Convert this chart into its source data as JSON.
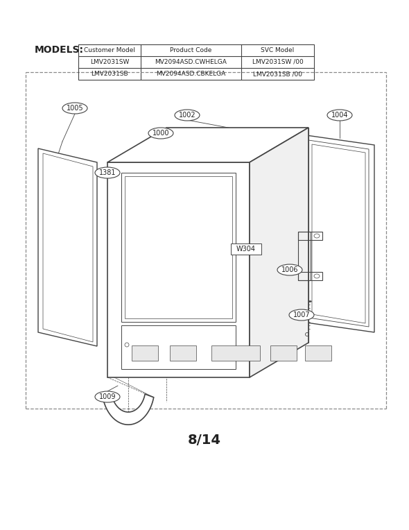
{
  "title": "8/14",
  "models_label": "MODELS:",
  "table_headers": [
    "Customer Model",
    "Product Code",
    "SVC Model"
  ],
  "table_rows": [
    [
      "LMV2031SW",
      "MV2094ASD.CWHELGA",
      "LMV2031SW /00"
    ],
    [
      "LMV2031SB",
      "MV2094ASD.CBKELGA",
      "LMV2031SB /00"
    ]
  ],
  "bg_color": "#ffffff",
  "line_color": "#444444",
  "text_color": "#222222",
  "border_color": "#888888"
}
